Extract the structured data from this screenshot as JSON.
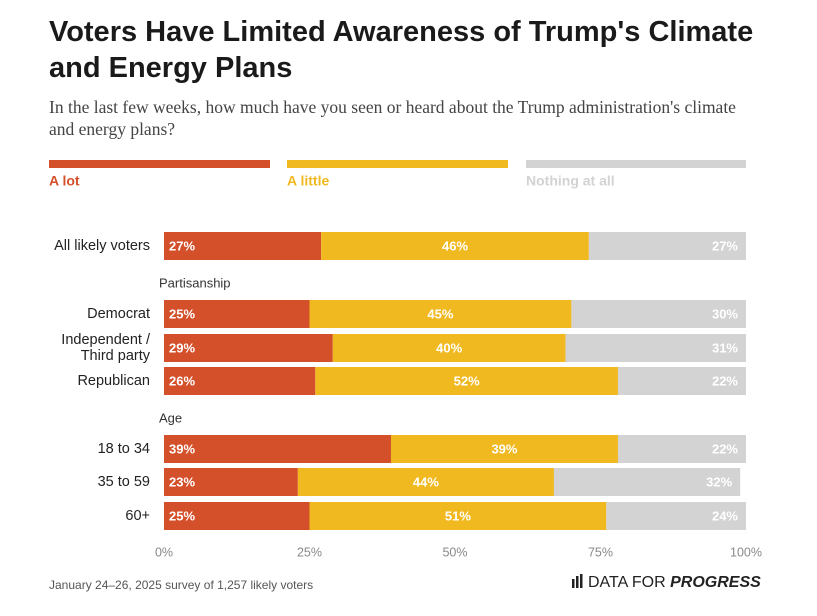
{
  "chart_data": {
    "type": "stacked-bar",
    "title": "Voters Have Limited Awareness of Trump's Climate and Energy Plans",
    "subtitle": "In the last few weeks, how much have you seen or heard about the Trump administration's climate and energy plans?",
    "categories": [
      "All likely voters",
      "Democrat",
      "Independent / Third party",
      "Republican",
      "18 to 34",
      "35 to 59",
      "60+"
    ],
    "group_labels": [
      "Partisanship",
      "Age"
    ],
    "series": [
      {
        "name": "A lot",
        "color": "#d4502a",
        "values": [
          27,
          25,
          29,
          26,
          39,
          23,
          25
        ],
        "value_labels": [
          "27%",
          "25%",
          "29%",
          "26%",
          "39%",
          "23%",
          "25%"
        ]
      },
      {
        "name": "A little",
        "color": "#f0b920",
        "values": [
          46,
          45,
          40,
          52,
          39,
          44,
          51
        ],
        "value_labels": [
          "46%",
          "45%",
          "40%",
          "52%",
          "39%",
          "44%",
          "51%"
        ]
      },
      {
        "name": "Nothing at all",
        "color": "#d3d3d4",
        "values": [
          27,
          30,
          31,
          22,
          22,
          32,
          24
        ],
        "value_labels": [
          "27%",
          "30%",
          "31%",
          "22%",
          "22%",
          "32%",
          "24%"
        ]
      }
    ],
    "xlim": [
      0,
      100
    ],
    "xticks": [
      {
        "value": 0,
        "label": "0%"
      },
      {
        "value": 25,
        "label": "25%"
      },
      {
        "value": 50,
        "label": "50%"
      },
      {
        "value": 75,
        "label": "75%"
      },
      {
        "value": 100,
        "label": "100%"
      }
    ],
    "note": "January 24–26, 2025 survey of 1,257 likely voters",
    "logo_prefix": "DATA FOR",
    "logo_emphasis": "PROGRESS"
  }
}
